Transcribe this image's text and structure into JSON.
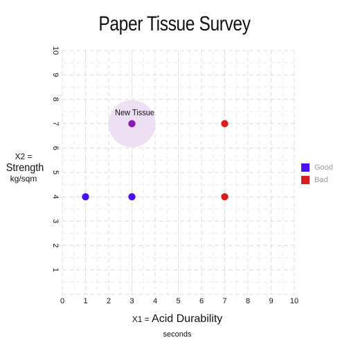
{
  "chart_data": {
    "type": "scatter",
    "title": "Paper Tissue Survey",
    "xlabel_prefix": "X1 = ",
    "xlabel_main": "Acid Durability",
    "xlabel_unit": "seconds",
    "ylabel_prefix": "X2 =",
    "ylabel_main": "Strength",
    "ylabel_unit": "kg/sqm",
    "xlim": [
      0,
      10
    ],
    "ylim": [
      0,
      10
    ],
    "x_ticks": [
      "0",
      "1",
      "2",
      "3",
      "4",
      "5",
      "6",
      "7",
      "8",
      "9",
      "10"
    ],
    "y_ticks": [
      "1",
      "2",
      "3",
      "4",
      "5",
      "6",
      "7",
      "8",
      "9",
      "10"
    ],
    "grid": true,
    "legend_position": "right",
    "series": [
      {
        "name": "Good",
        "color": "#4a12f5",
        "points": [
          {
            "x": 1,
            "y": 4
          },
          {
            "x": 3,
            "y": 4
          }
        ]
      },
      {
        "name": "Bad",
        "color": "#d81e1e",
        "points": [
          {
            "x": 7,
            "y": 7
          },
          {
            "x": 7,
            "y": 4
          }
        ]
      }
    ],
    "query_point": {
      "label": "New Tissue",
      "x": 3,
      "y": 7,
      "color": "#8e18b8",
      "halo_color": "#ead9f2"
    }
  }
}
